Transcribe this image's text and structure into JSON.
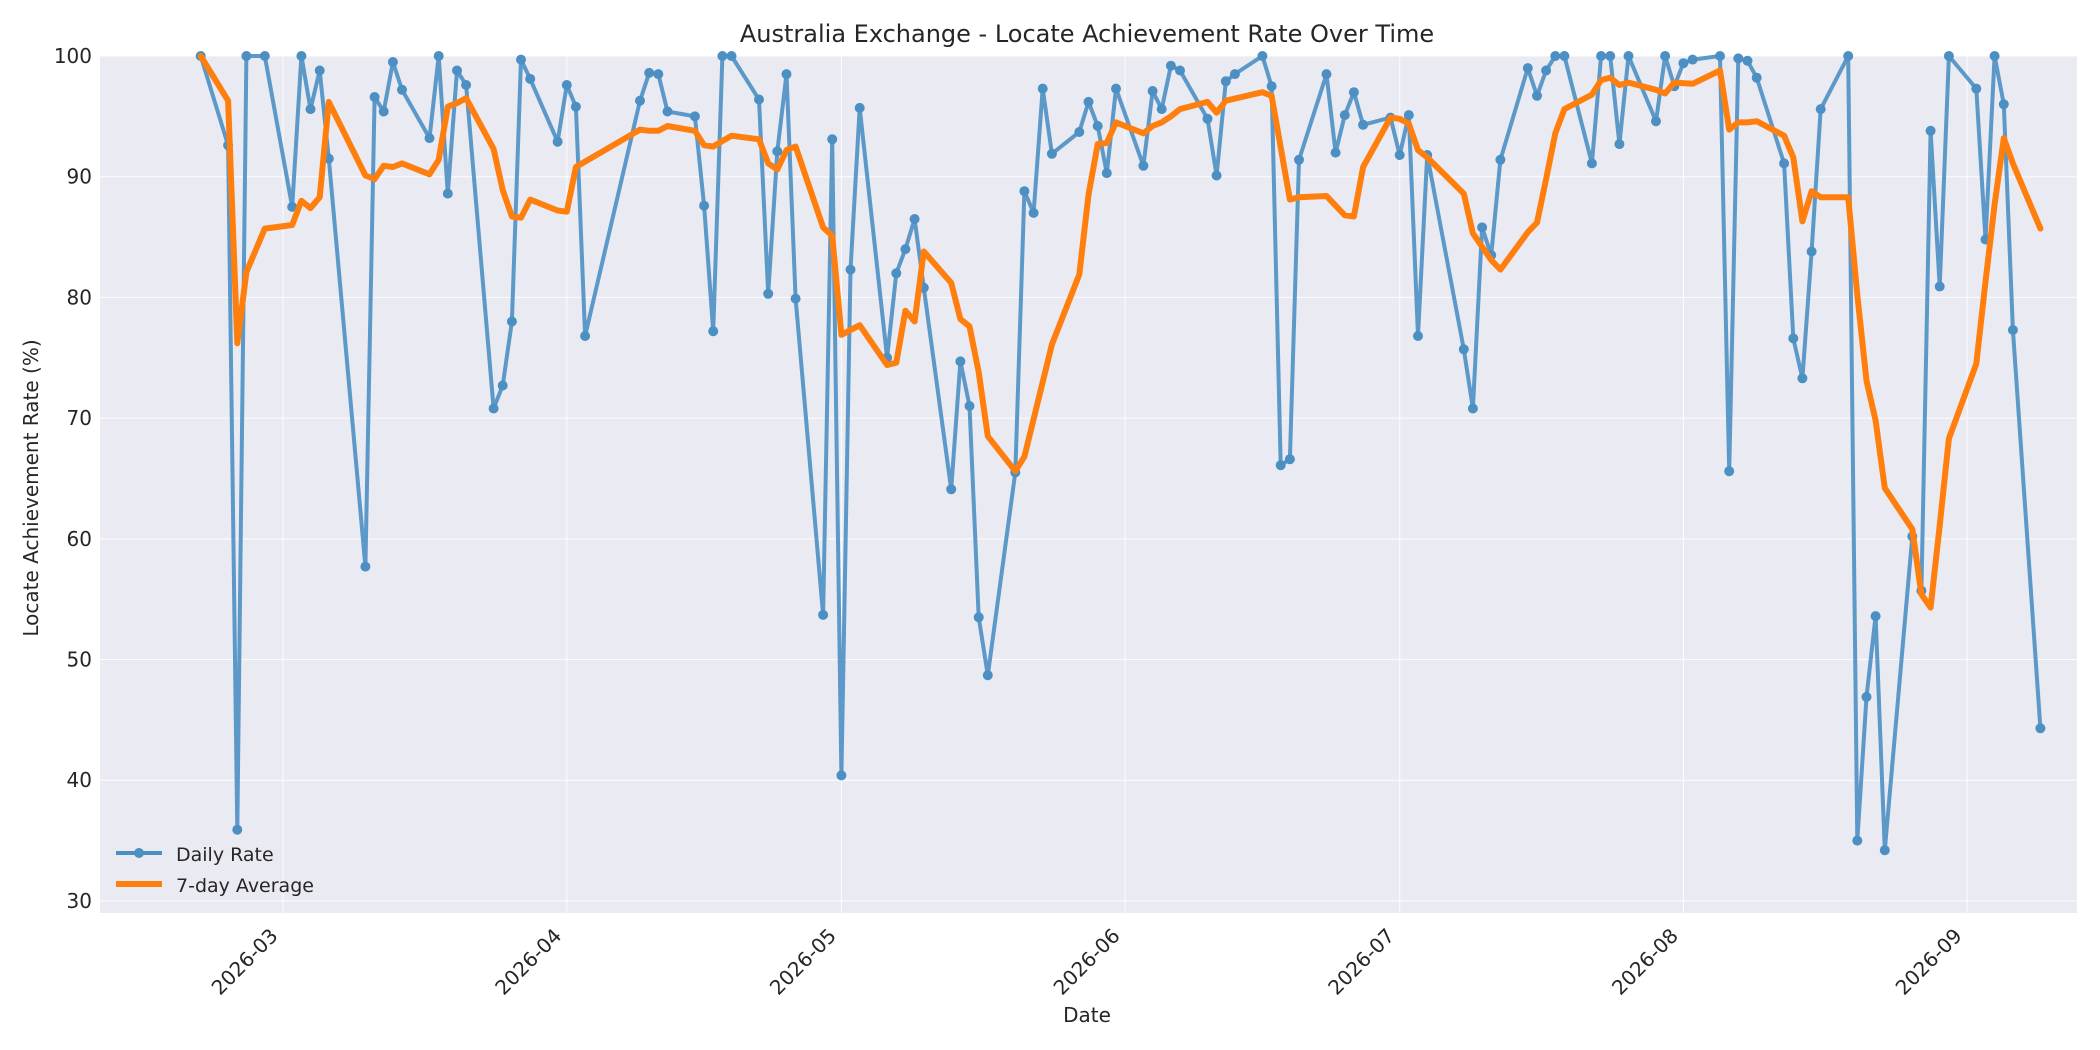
{
  "chart_data": {
    "type": "line",
    "title": "Australia Exchange - Locate Achievement Rate Over Time",
    "xlabel": "Date",
    "ylabel": "Locate Achievement Rate (%)",
    "xlim": [
      "2026-02-09",
      "2026-09-13"
    ],
    "ylim": [
      29,
      100
    ],
    "yticks": [
      30,
      40,
      50,
      60,
      70,
      80,
      90,
      100
    ],
    "xticks": [
      "2026-03-01",
      "2026-04-01",
      "2026-05-01",
      "2026-06-01",
      "2026-07-01",
      "2026-08-01",
      "2026-09-01"
    ],
    "xtick_labels": [
      "2026-03",
      "2026-04",
      "2026-05",
      "2026-06",
      "2026-07",
      "2026-08",
      "2026-09"
    ],
    "grid": true,
    "legend_position": "lower-left",
    "series": [
      {
        "name": "Daily Rate",
        "color": "#4c8fc3",
        "marker": "circle",
        "points": [
          [
            "2026-02-20",
            100
          ],
          [
            "2026-02-23",
            92.6
          ],
          [
            "2026-02-24",
            35.9
          ],
          [
            "2026-02-25",
            100
          ],
          [
            "2026-02-27",
            100
          ],
          [
            "2026-03-02",
            87.5
          ],
          [
            "2026-03-03",
            100
          ],
          [
            "2026-03-04",
            95.6
          ],
          [
            "2026-03-05",
            98.8
          ],
          [
            "2026-03-06",
            91.5
          ],
          [
            "2026-03-10",
            57.7
          ],
          [
            "2026-03-11",
            96.6
          ],
          [
            "2026-03-12",
            95.4
          ],
          [
            "2026-03-13",
            99.5
          ],
          [
            "2026-03-14",
            97.2
          ],
          [
            "2026-03-17",
            93.2
          ],
          [
            "2026-03-18",
            100
          ],
          [
            "2026-03-19",
            88.6
          ],
          [
            "2026-03-20",
            98.8
          ],
          [
            "2026-03-21",
            97.6
          ],
          [
            "2026-03-24",
            70.8
          ],
          [
            "2026-03-25",
            72.7
          ],
          [
            "2026-03-26",
            78
          ],
          [
            "2026-03-27",
            99.7
          ],
          [
            "2026-03-28",
            98.1
          ],
          [
            "2026-03-31",
            92.9
          ],
          [
            "2026-04-01",
            97.6
          ],
          [
            "2026-04-02",
            95.8
          ],
          [
            "2026-04-03",
            76.8
          ],
          [
            "2026-04-09",
            96.3
          ],
          [
            "2026-04-10",
            98.6
          ],
          [
            "2026-04-11",
            98.5
          ],
          [
            "2026-04-12",
            95.4
          ],
          [
            "2026-04-15",
            95
          ],
          [
            "2026-04-16",
            87.6
          ],
          [
            "2026-04-17",
            77.2
          ],
          [
            "2026-04-18",
            100
          ],
          [
            "2026-04-19",
            100
          ],
          [
            "2026-04-22",
            96.4
          ],
          [
            "2026-04-23",
            80.3
          ],
          [
            "2026-04-24",
            92.1
          ],
          [
            "2026-04-25",
            98.5
          ],
          [
            "2026-04-26",
            79.9
          ],
          [
            "2026-04-29",
            53.7
          ],
          [
            "2026-04-30",
            93.1
          ],
          [
            "2026-05-01",
            40.4
          ],
          [
            "2026-05-02",
            82.3
          ],
          [
            "2026-05-03",
            95.7
          ],
          [
            "2026-05-06",
            75
          ],
          [
            "2026-05-07",
            82
          ],
          [
            "2026-05-08",
            84
          ],
          [
            "2026-05-09",
            86.5
          ],
          [
            "2026-05-10",
            80.8
          ],
          [
            "2026-05-13",
            64.1
          ],
          [
            "2026-05-14",
            74.7
          ],
          [
            "2026-05-15",
            71
          ],
          [
            "2026-05-16",
            53.5
          ],
          [
            "2026-05-17",
            48.7
          ],
          [
            "2026-05-20",
            65.5
          ],
          [
            "2026-05-21",
            88.8
          ],
          [
            "2026-05-22",
            87
          ],
          [
            "2026-05-23",
            97.3
          ],
          [
            "2026-05-24",
            91.9
          ],
          [
            "2026-05-27",
            93.7
          ],
          [
            "2026-05-28",
            96.2
          ],
          [
            "2026-05-29",
            94.2
          ],
          [
            "2026-05-30",
            90.3
          ],
          [
            "2026-05-31",
            97.3
          ],
          [
            "2026-06-03",
            90.9
          ],
          [
            "2026-06-04",
            97.1
          ],
          [
            "2026-06-05",
            95.6
          ],
          [
            "2026-06-06",
            99.2
          ],
          [
            "2026-06-07",
            98.8
          ],
          [
            "2026-06-10",
            94.8
          ],
          [
            "2026-06-11",
            90.1
          ],
          [
            "2026-06-12",
            97.9
          ],
          [
            "2026-06-13",
            98.5
          ],
          [
            "2026-06-16",
            100
          ],
          [
            "2026-06-17",
            97.5
          ],
          [
            "2026-06-18",
            66.1
          ],
          [
            "2026-06-19",
            66.6
          ],
          [
            "2026-06-20",
            91.4
          ],
          [
            "2026-06-23",
            98.5
          ],
          [
            "2026-06-24",
            92
          ],
          [
            "2026-06-25",
            95.1
          ],
          [
            "2026-06-26",
            97
          ],
          [
            "2026-06-27",
            94.3
          ],
          [
            "2026-06-30",
            94.9
          ],
          [
            "2026-07-01",
            91.8
          ],
          [
            "2026-07-02",
            95.1
          ],
          [
            "2026-07-03",
            76.8
          ],
          [
            "2026-07-04",
            91.8
          ],
          [
            "2026-07-08",
            75.7
          ],
          [
            "2026-07-09",
            70.8
          ],
          [
            "2026-07-10",
            85.8
          ],
          [
            "2026-07-11",
            83.5
          ],
          [
            "2026-07-12",
            91.4
          ],
          [
            "2026-07-15",
            99
          ],
          [
            "2026-07-16",
            96.7
          ],
          [
            "2026-07-17",
            98.8
          ],
          [
            "2026-07-18",
            100
          ],
          [
            "2026-07-19",
            100
          ],
          [
            "2026-07-22",
            91.1
          ],
          [
            "2026-07-23",
            100
          ],
          [
            "2026-07-24",
            100
          ],
          [
            "2026-07-25",
            92.7
          ],
          [
            "2026-07-26",
            100
          ],
          [
            "2026-07-29",
            94.6
          ],
          [
            "2026-07-30",
            100
          ],
          [
            "2026-07-31",
            97.5
          ],
          [
            "2026-08-01",
            99.4
          ],
          [
            "2026-08-02",
            99.7
          ],
          [
            "2026-08-05",
            100
          ],
          [
            "2026-08-06",
            65.6
          ],
          [
            "2026-08-07",
            99.8
          ],
          [
            "2026-08-08",
            99.6
          ],
          [
            "2026-08-09",
            98.2
          ],
          [
            "2026-08-12",
            91.1
          ],
          [
            "2026-08-13",
            76.6
          ],
          [
            "2026-08-14",
            73.3
          ],
          [
            "2026-08-15",
            83.8
          ],
          [
            "2026-08-16",
            95.6
          ],
          [
            "2026-08-19",
            100
          ],
          [
            "2026-08-20",
            35
          ],
          [
            "2026-08-21",
            46.9
          ],
          [
            "2026-08-22",
            53.6
          ],
          [
            "2026-08-23",
            34.2
          ],
          [
            "2026-08-26",
            60.2
          ],
          [
            "2026-08-27",
            55.7
          ],
          [
            "2026-08-28",
            93.8
          ],
          [
            "2026-08-29",
            80.9
          ],
          [
            "2026-08-30",
            100
          ],
          [
            "2026-09-02",
            97.3
          ],
          [
            "2026-09-03",
            84.8
          ],
          [
            "2026-09-04",
            100
          ],
          [
            "2026-09-05",
            96
          ],
          [
            "2026-09-06",
            77.3
          ],
          [
            "2026-09-09",
            44.3
          ]
        ]
      },
      {
        "name": "7-day Average",
        "color": "#ff7f0e",
        "marker": "none",
        "points": [
          [
            "2026-02-20",
            100
          ],
          [
            "2026-02-23",
            96.3
          ],
          [
            "2026-02-24",
            76.2
          ],
          [
            "2026-02-25",
            82.1
          ],
          [
            "2026-02-27",
            85.7
          ],
          [
            "2026-03-02",
            86
          ],
          [
            "2026-03-03",
            88
          ],
          [
            "2026-03-04",
            87.4
          ],
          [
            "2026-03-05",
            88.3
          ],
          [
            "2026-03-06",
            96.2
          ],
          [
            "2026-03-10",
            90.1
          ],
          [
            "2026-03-11",
            89.8
          ],
          [
            "2026-03-12",
            90.9
          ],
          [
            "2026-03-13",
            90.8
          ],
          [
            "2026-03-14",
            91.1
          ],
          [
            "2026-03-17",
            90.2
          ],
          [
            "2026-03-18",
            91.4
          ],
          [
            "2026-03-19",
            95.8
          ],
          [
            "2026-03-20",
            96.1
          ],
          [
            "2026-03-21",
            96.5
          ],
          [
            "2026-03-24",
            92.3
          ],
          [
            "2026-03-25",
            88.9
          ],
          [
            "2026-03-26",
            86.7
          ],
          [
            "2026-03-27",
            86.6
          ],
          [
            "2026-03-28",
            88.1
          ],
          [
            "2026-03-31",
            87.2
          ],
          [
            "2026-04-01",
            87.1
          ],
          [
            "2026-04-02",
            90.8
          ],
          [
            "2026-04-09",
            93.9
          ],
          [
            "2026-04-10",
            93.8
          ],
          [
            "2026-04-11",
            93.8
          ],
          [
            "2026-04-12",
            94.2
          ],
          [
            "2026-04-15",
            93.8
          ],
          [
            "2026-04-16",
            92.6
          ],
          [
            "2026-04-17",
            92.5
          ],
          [
            "2026-04-19",
            93.4
          ],
          [
            "2026-04-22",
            93.1
          ],
          [
            "2026-04-23",
            91.1
          ],
          [
            "2026-04-24",
            90.6
          ],
          [
            "2026-04-25",
            92.2
          ],
          [
            "2026-04-26",
            92.5
          ],
          [
            "2026-04-29",
            85.8
          ],
          [
            "2026-04-30",
            85.1
          ],
          [
            "2026-05-01",
            76.9
          ],
          [
            "2026-05-03",
            77.7
          ],
          [
            "2026-05-06",
            74.4
          ],
          [
            "2026-05-07",
            74.6
          ],
          [
            "2026-05-08",
            78.9
          ],
          [
            "2026-05-09",
            78
          ],
          [
            "2026-05-10",
            83.8
          ],
          [
            "2026-05-13",
            81.2
          ],
          [
            "2026-05-14",
            78.2
          ],
          [
            "2026-05-15",
            77.6
          ],
          [
            "2026-05-16",
            73.8
          ],
          [
            "2026-05-17",
            68.5
          ],
          [
            "2026-05-20",
            65.6
          ],
          [
            "2026-05-21",
            66.8
          ],
          [
            "2026-05-24",
            76.1
          ],
          [
            "2026-05-27",
            81.9
          ],
          [
            "2026-05-28",
            88.5
          ],
          [
            "2026-05-29",
            92.7
          ],
          [
            "2026-05-30",
            92.8
          ],
          [
            "2026-05-31",
            94.5
          ],
          [
            "2026-06-03",
            93.6
          ],
          [
            "2026-06-04",
            94.2
          ],
          [
            "2026-06-05",
            94.5
          ],
          [
            "2026-06-06",
            95
          ],
          [
            "2026-06-07",
            95.6
          ],
          [
            "2026-06-10",
            96.2
          ],
          [
            "2026-06-11",
            95.3
          ],
          [
            "2026-06-12",
            96.3
          ],
          [
            "2026-06-16",
            97
          ],
          [
            "2026-06-17",
            96.7
          ],
          [
            "2026-06-19",
            88.1
          ],
          [
            "2026-06-20",
            88.3
          ],
          [
            "2026-06-23",
            88.4
          ],
          [
            "2026-06-25",
            86.8
          ],
          [
            "2026-06-26",
            86.7
          ],
          [
            "2026-06-27",
            90.8
          ],
          [
            "2026-06-30",
            94.9
          ],
          [
            "2026-07-01",
            94.8
          ],
          [
            "2026-07-02",
            94.4
          ],
          [
            "2026-07-03",
            92.2
          ],
          [
            "2026-07-04",
            91.6
          ],
          [
            "2026-07-08",
            88.6
          ],
          [
            "2026-07-09",
            85.3
          ],
          [
            "2026-07-11",
            83.1
          ],
          [
            "2026-07-12",
            82.3
          ],
          [
            "2026-07-15",
            85.4
          ],
          [
            "2026-07-16",
            86.2
          ],
          [
            "2026-07-17",
            89.8
          ],
          [
            "2026-07-18",
            93.6
          ],
          [
            "2026-07-19",
            95.6
          ],
          [
            "2026-07-22",
            96.8
          ],
          [
            "2026-07-23",
            98
          ],
          [
            "2026-07-24",
            98.2
          ],
          [
            "2026-07-25",
            97.6
          ],
          [
            "2026-07-26",
            97.8
          ],
          [
            "2026-07-29",
            97.2
          ],
          [
            "2026-07-30",
            96.9
          ],
          [
            "2026-07-31",
            97.8
          ],
          [
            "2026-08-02",
            97.7
          ],
          [
            "2026-08-05",
            98.8
          ],
          [
            "2026-08-06",
            93.9
          ],
          [
            "2026-08-07",
            94.5
          ],
          [
            "2026-08-08",
            94.5
          ],
          [
            "2026-08-09",
            94.6
          ],
          [
            "2026-08-12",
            93.4
          ],
          [
            "2026-08-13",
            91.6
          ],
          [
            "2026-08-14",
            86.3
          ],
          [
            "2026-08-15",
            88.8
          ],
          [
            "2026-08-16",
            88.3
          ],
          [
            "2026-08-19",
            88.3
          ],
          [
            "2026-08-20",
            80.2
          ],
          [
            "2026-08-21",
            73.1
          ],
          [
            "2026-08-22",
            69.8
          ],
          [
            "2026-08-23",
            64.2
          ],
          [
            "2026-08-26",
            60.8
          ],
          [
            "2026-08-27",
            55.4
          ],
          [
            "2026-08-28",
            54.3
          ],
          [
            "2026-08-29",
            61.1
          ],
          [
            "2026-08-30",
            68.3
          ],
          [
            "2026-09-02",
            74.5
          ],
          [
            "2026-09-03",
            81.3
          ],
          [
            "2026-09-04",
            87.7
          ],
          [
            "2026-09-05",
            93.2
          ],
          [
            "2026-09-06",
            91.1
          ],
          [
            "2026-09-09",
            85.7
          ]
        ]
      }
    ]
  }
}
